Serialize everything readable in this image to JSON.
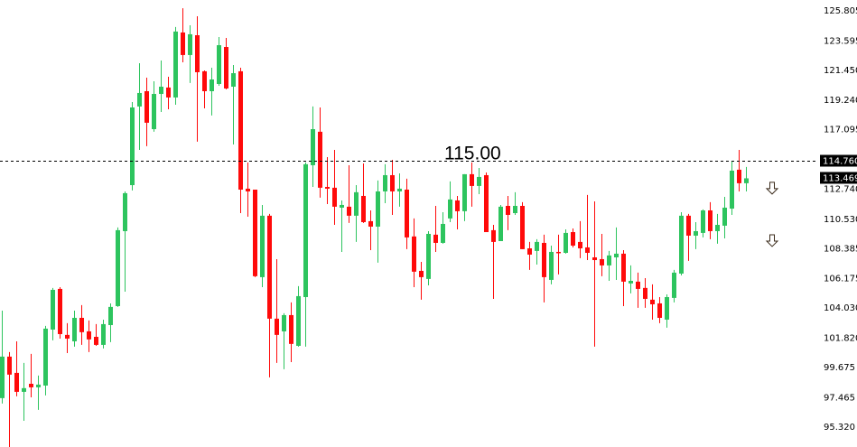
{
  "chart_data": {
    "type": "candlestick",
    "title": "",
    "xlabel": "",
    "ylabel": "",
    "ylim": [
      93.79,
      126.53
    ],
    "grid": false,
    "colors": {
      "up": "#2dc45e",
      "down": "#ff0a0a",
      "label_bg": "#000000",
      "line": "#000000"
    },
    "y_ticks": [
      "125.805",
      "123.595",
      "121.450",
      "119.240",
      "117.095",
      "112.740",
      "110.530",
      "108.385",
      "106.175",
      "104.030",
      "101.820",
      "99.675",
      "97.465",
      "95.320"
    ],
    "y_tick_values": [
      125.805,
      123.595,
      121.45,
      119.24,
      117.095,
      112.74,
      110.53,
      108.385,
      106.175,
      104.03,
      101.82,
      99.675,
      97.465,
      95.32
    ],
    "horizontal_line": {
      "price": 114.76,
      "price_label": "114.760",
      "annotation": "115.00",
      "style": "dashed"
    },
    "current_price": {
      "price": 113.469,
      "label": "113.469"
    },
    "arrows": [
      {
        "icon": "down-arrow-icon",
        "price": 112.78
      },
      {
        "icon": "down-arrow-icon",
        "price": 108.94
      }
    ],
    "ohlc": [
      [
        97.37,
        103.78,
        96.97,
        100.41
      ],
      [
        100.41,
        100.74,
        93.79,
        99.09
      ],
      [
        99.22,
        101.53,
        97.5,
        97.83
      ],
      [
        97.83,
        99.95,
        95.71,
        98.1
      ],
      [
        98.42,
        100.61,
        97.43,
        98.16
      ],
      [
        98.16,
        99.02,
        96.51,
        98.36
      ],
      [
        98.29,
        102.66,
        97.57,
        102.46
      ],
      [
        102.39,
        105.44,
        101.6,
        105.3
      ],
      [
        105.37,
        105.5,
        101.73,
        102.06
      ],
      [
        102.0,
        102.86,
        100.67,
        101.73
      ],
      [
        101.53,
        103.78,
        101.14,
        103.25
      ],
      [
        103.25,
        104.18,
        101.27,
        102.2
      ],
      [
        102.26,
        103.06,
        100.74,
        101.67
      ],
      [
        101.86,
        102.79,
        101.2,
        101.27
      ],
      [
        101.27,
        103.12,
        101.01,
        102.79
      ],
      [
        102.72,
        104.31,
        101.47,
        104.05
      ],
      [
        104.11,
        109.87,
        104.05,
        109.67
      ],
      [
        109.6,
        112.51,
        105.17,
        112.38
      ],
      [
        112.97,
        119.06,
        112.58,
        118.66
      ],
      [
        118.73,
        121.9,
        115.55,
        119.72
      ],
      [
        119.85,
        120.84,
        115.82,
        117.54
      ],
      [
        117.07,
        120.58,
        116.88,
        119.65
      ],
      [
        119.65,
        122.1,
        118.33,
        120.18
      ],
      [
        120.12,
        120.91,
        118.53,
        119.39
      ],
      [
        119.39,
        124.55,
        118.86,
        124.22
      ],
      [
        124.15,
        125.93,
        121.97,
        122.5
      ],
      [
        122.5,
        124.68,
        120.45,
        124.02
      ],
      [
        123.95,
        125.34,
        116.15,
        121.24
      ],
      [
        121.31,
        121.37,
        118.59,
        119.85
      ],
      [
        119.85,
        121.57,
        118.07,
        120.71
      ],
      [
        120.38,
        123.82,
        120.25,
        123.22
      ],
      [
        123.09,
        123.75,
        119.98,
        120.05
      ],
      [
        120.18,
        121.77,
        115.95,
        121.17
      ],
      [
        121.31,
        121.57,
        110.92,
        112.64
      ],
      [
        112.71,
        114.63,
        110.66,
        112.51
      ],
      [
        112.64,
        112.64,
        106.23,
        106.3
      ],
      [
        106.23,
        111.52,
        105.5,
        110.73
      ],
      [
        110.73,
        110.86,
        98.89,
        103.19
      ],
      [
        103.19,
        107.55,
        99.95,
        102.0
      ],
      [
        102.26,
        103.59,
        99.49,
        103.45
      ],
      [
        103.45,
        104.38,
        100.01,
        101.34
      ],
      [
        101.2,
        105.57,
        101.14,
        104.84
      ],
      [
        104.77,
        114.63,
        101.14,
        114.5
      ],
      [
        114.43,
        118.73,
        112.84,
        117.07
      ],
      [
        116.88,
        118.66,
        112.05,
        112.78
      ],
      [
        112.84,
        115.02,
        111.58,
        112.71
      ],
      [
        112.78,
        115.55,
        110.06,
        111.39
      ],
      [
        111.32,
        111.85,
        108.08,
        111.52
      ],
      [
        111.39,
        114.43,
        110.2,
        110.73
      ],
      [
        110.73,
        112.97,
        108.81,
        112.45
      ],
      [
        112.18,
        114.56,
        110.2,
        110.26
      ],
      [
        110.33,
        111.12,
        108.21,
        109.93
      ],
      [
        109.93,
        113.31,
        107.29,
        112.51
      ],
      [
        112.51,
        114.5,
        111.65,
        113.7
      ],
      [
        113.7,
        114.82,
        110.79,
        112.51
      ],
      [
        112.51,
        113.83,
        111.39,
        112.71
      ],
      [
        112.64,
        113.44,
        108.28,
        109.14
      ],
      [
        109.21,
        110.53,
        105.5,
        106.63
      ],
      [
        106.69,
        107.35,
        104.58,
        106.23
      ],
      [
        106.1,
        109.6,
        105.63,
        109.4
      ],
      [
        109.34,
        111.45,
        108.08,
        108.74
      ],
      [
        108.74,
        110.99,
        108.68,
        110.13
      ],
      [
        110.53,
        113.24,
        110.26,
        111.92
      ],
      [
        111.85,
        112.18,
        109.73,
        111.06
      ],
      [
        111.06,
        113.77,
        110.33,
        113.77
      ],
      [
        113.77,
        114.63,
        111.39,
        112.91
      ],
      [
        112.91,
        114.23,
        112.31,
        113.57
      ],
      [
        113.7,
        113.9,
        109.53,
        109.53
      ],
      [
        109.67,
        110.06,
        104.64,
        108.81
      ],
      [
        108.87,
        111.52,
        108.87,
        111.39
      ],
      [
        111.45,
        112.18,
        109.67,
        110.79
      ],
      [
        110.92,
        112.45,
        110.79,
        111.45
      ],
      [
        111.45,
        111.72,
        108.28,
        108.28
      ],
      [
        108.34,
        108.81,
        106.76,
        107.88
      ],
      [
        108.15,
        109.01,
        107.15,
        108.81
      ],
      [
        108.74,
        109.34,
        104.38,
        106.23
      ],
      [
        106.03,
        108.54,
        105.7,
        108.08
      ],
      [
        108.08,
        109.34,
        106.43,
        108.01
      ],
      [
        108.01,
        109.73,
        107.95,
        109.47
      ],
      [
        109.53,
        109.8,
        108.41,
        108.54
      ],
      [
        108.81,
        110.33,
        107.62,
        108.34
      ],
      [
        108.41,
        112.25,
        107.48,
        108.01
      ],
      [
        107.68,
        111.78,
        101.14,
        107.48
      ],
      [
        107.55,
        109.4,
        106.3,
        107.09
      ],
      [
        107.09,
        108.15,
        105.96,
        107.82
      ],
      [
        107.68,
        109.87,
        106.03,
        107.95
      ],
      [
        107.95,
        108.21,
        104.11,
        105.9
      ],
      [
        105.77,
        107.09,
        105.04,
        105.96
      ],
      [
        105.9,
        106.56,
        103.98,
        105.37
      ],
      [
        105.44,
        106.16,
        103.98,
        104.64
      ],
      [
        104.58,
        105.7,
        103.12,
        104.24
      ],
      [
        104.31,
        104.77,
        102.86,
        103.25
      ],
      [
        103.12,
        104.97,
        102.53,
        104.77
      ],
      [
        104.71,
        106.76,
        104.38,
        106.56
      ],
      [
        106.49,
        110.99,
        106.36,
        110.73
      ],
      [
        110.73,
        110.86,
        107.42,
        109.27
      ],
      [
        109.27,
        110.26,
        108.28,
        109.6
      ],
      [
        109.47,
        111.19,
        109.14,
        111.12
      ],
      [
        111.12,
        111.72,
        109.01,
        109.6
      ],
      [
        109.6,
        110.86,
        108.68,
        110.06
      ],
      [
        110.0,
        112.11,
        109.07,
        111.32
      ],
      [
        111.25,
        114.76,
        110.79,
        114.03
      ],
      [
        114.1,
        115.55,
        112.51,
        113.11
      ],
      [
        113.11,
        114.3,
        112.51,
        113.469
      ]
    ]
  }
}
